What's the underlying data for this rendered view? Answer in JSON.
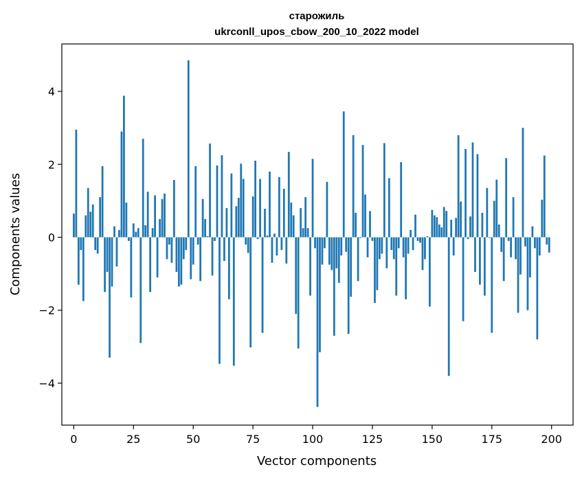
{
  "chart_data": {
    "type": "bar",
    "title": "старожиль",
    "subtitle": "ukrconll_upos_cbow_200_10_2022 model",
    "xlabel": "Vector components",
    "ylabel": "Components values",
    "xlim": [
      -5,
      209
    ],
    "ylim": [
      -5.15,
      5.3
    ],
    "xticks": [
      0,
      25,
      50,
      75,
      100,
      125,
      150,
      175,
      200
    ],
    "yticks": [
      -4,
      -2,
      0,
      2,
      4
    ],
    "ytick_labels": [
      "−4",
      "−2",
      "0",
      "2",
      "4"
    ],
    "grid": false,
    "legend": "none",
    "bar_color": "#1f77b4",
    "values": [
      0.65,
      2.95,
      -1.3,
      -0.35,
      -1.75,
      0.6,
      1.35,
      0.7,
      0.9,
      -0.35,
      -0.45,
      1.1,
      1.95,
      -1.5,
      -0.95,
      -3.3,
      -1.35,
      0.3,
      -0.8,
      0.2,
      2.9,
      3.88,
      0.95,
      -0.1,
      -1.65,
      0.38,
      0.15,
      0.25,
      -2.9,
      2.7,
      0.33,
      1.25,
      -1.5,
      0.25,
      1.15,
      -1.1,
      0.5,
      1.05,
      1.2,
      -0.6,
      -0.2,
      -0.7,
      1.57,
      -0.95,
      -1.35,
      -1.3,
      -0.6,
      -0.35,
      4.85,
      -1.15,
      -0.75,
      1.95,
      -0.2,
      -1.2,
      1.05,
      0.5,
      0.03,
      2.57,
      -1.05,
      -0.1,
      1.97,
      -3.47,
      2.25,
      -0.65,
      0.8,
      -1.7,
      1.75,
      -3.52,
      0.85,
      1.08,
      2.02,
      1.6,
      -0.2,
      -0.43,
      -3.02,
      1.12,
      2.1,
      -0.05,
      1.6,
      -2.62,
      0.78,
      0.05,
      1.8,
      -0.7,
      0.1,
      -0.5,
      1.65,
      -0.35,
      1.33,
      -0.72,
      2.34,
      0.95,
      0.6,
      -2.1,
      -3.05,
      0.8,
      0.25,
      1.1,
      0.25,
      -1.6,
      2.15,
      -0.3,
      -4.65,
      -3.15,
      -0.75,
      -0.3,
      1.52,
      -0.75,
      -0.9,
      -2.7,
      -0.85,
      -1.25,
      -0.5,
      3.45,
      -0.4,
      -2.65,
      -1.63,
      2.8,
      0.67,
      -1.2,
      -0.02,
      2.53,
      1.17,
      -0.55,
      0.72,
      -0.1,
      -1.8,
      -1.45,
      -0.6,
      -0.45,
      2.58,
      -0.85,
      1.62,
      -0.35,
      -0.6,
      -1.6,
      -0.3,
      2.06,
      -0.55,
      -1.7,
      -0.45,
      0.2,
      -0.35,
      0.62,
      -0.1,
      -0.15,
      -0.9,
      -0.6,
      0.03,
      -1.9,
      0.75,
      0.6,
      0.55,
      0.35,
      0.27,
      0.83,
      0.72,
      -3.8,
      0.48,
      -0.5,
      0.53,
      2.8,
      0.98,
      -2.3,
      2.42,
      -0.05,
      0.57,
      2.6,
      -0.95,
      2.28,
      -1.3,
      0.67,
      -1.6,
      1.35,
      -0.02,
      -2.62,
      1.0,
      1.58,
      0.35,
      -0.4,
      -1.2,
      2.17,
      -0.1,
      -0.55,
      1.1,
      -0.6,
      -2.07,
      -1.02,
      3.0,
      -0.25,
      -2.0,
      -1.1,
      0.3,
      -0.3,
      -2.8,
      -0.5,
      1.03,
      2.24,
      -0.2,
      -0.42
    ]
  }
}
